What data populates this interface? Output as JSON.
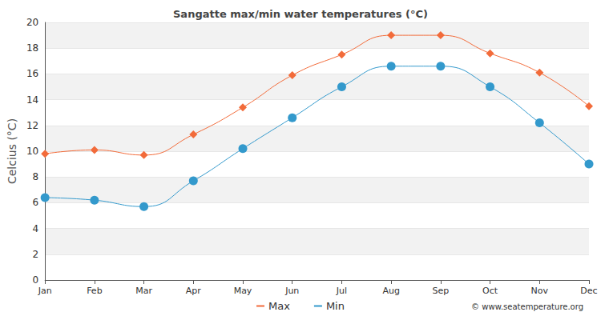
{
  "chart_data": {
    "type": "line",
    "title": "Sangatte max/min water temperatures (°C)",
    "y_label": "Celcius (°C)",
    "annotation": "© www.seatemperature.org",
    "categories": [
      "Jan",
      "Feb",
      "Mar",
      "Apr",
      "May",
      "Jun",
      "Jul",
      "Aug",
      "Sep",
      "Oct",
      "Nov",
      "Dec"
    ],
    "series": [
      {
        "name": "Max",
        "color": "#f26b3a",
        "marker": "diamond",
        "line_style": "solid",
        "values": [
          9.8,
          10.1,
          9.7,
          11.3,
          13.4,
          15.9,
          17.5,
          19.0,
          19.0,
          17.6,
          16.1,
          13.5
        ]
      },
      {
        "name": "Min",
        "color": "#3399cc",
        "marker": "circle",
        "line_style": "solid",
        "values": [
          6.4,
          6.2,
          5.7,
          7.7,
          10.2,
          12.6,
          15.0,
          16.6,
          16.6,
          15.0,
          12.2,
          9.0
        ]
      }
    ],
    "ylim": [
      0,
      20
    ],
    "yticks": [
      0,
      2,
      4,
      6,
      8,
      10,
      12,
      14,
      16,
      18,
      20
    ],
    "grid": true,
    "legend": "bottom"
  }
}
